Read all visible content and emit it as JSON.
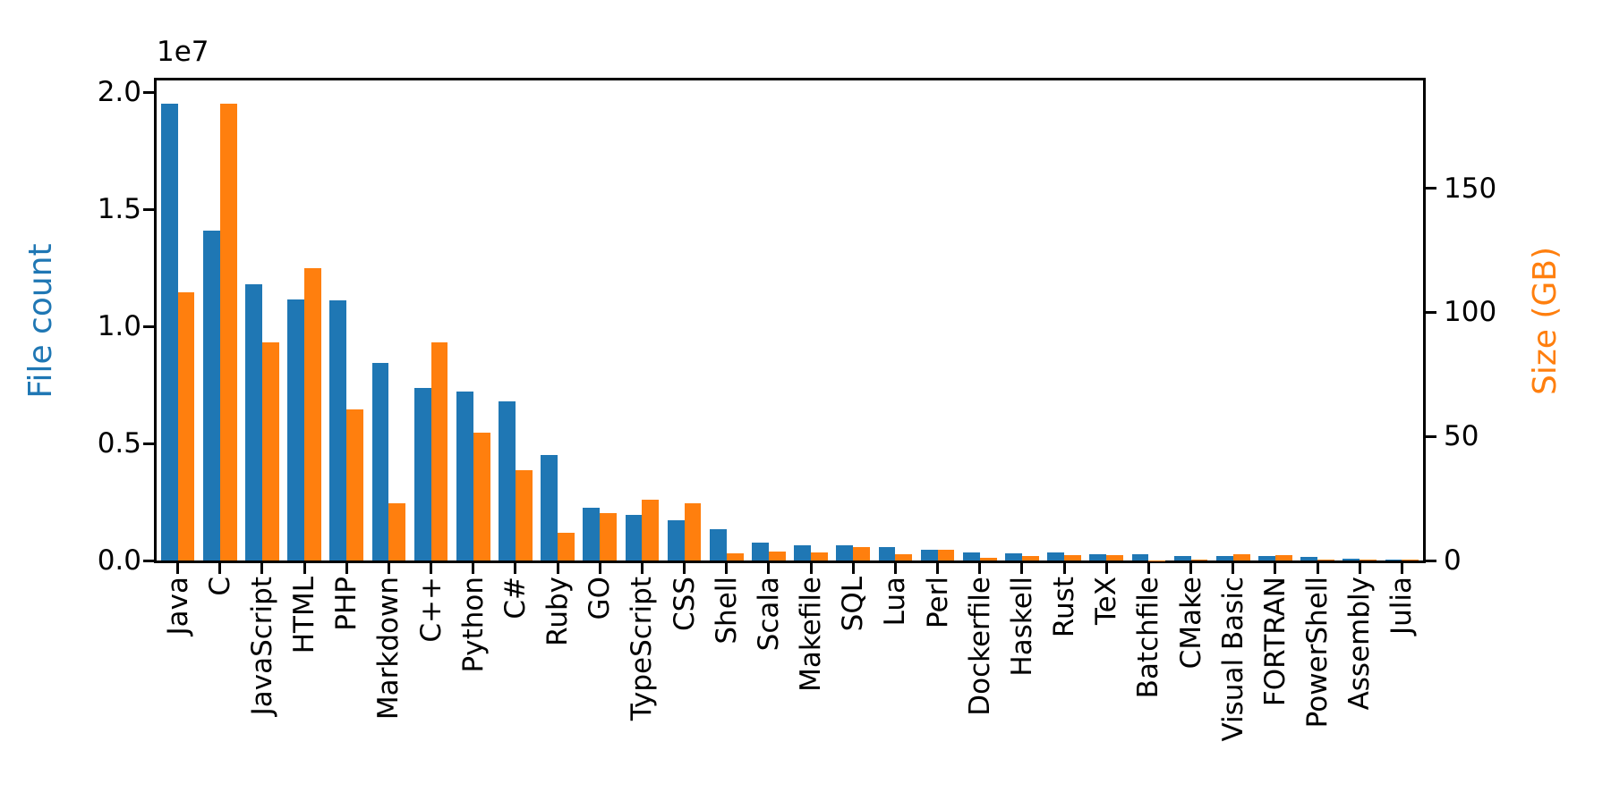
{
  "chart_data": {
    "type": "bar",
    "title": "",
    "categories": [
      "Java",
      "C",
      "JavaScript",
      "HTML",
      "PHP",
      "Markdown",
      "C++",
      "Python",
      "C#",
      "Ruby",
      "GO",
      "TypeScript",
      "CSS",
      "Shell",
      "Scala",
      "Makefile",
      "SQL",
      "Lua",
      "Perl",
      "Dockerfile",
      "Haskell",
      "Rust",
      "TeX",
      "Batchfile",
      "CMake",
      "Visual Basic",
      "FORTRAN",
      "PowerShell",
      "Assembly",
      "Julia"
    ],
    "series": [
      {
        "name": "File count",
        "axis": "left",
        "color": "#1f77b4",
        "values": [
          19500000,
          14100000,
          11800000,
          11150000,
          11100000,
          8450000,
          7350000,
          7200000,
          6800000,
          4500000,
          2250000,
          1950000,
          1720000,
          1350000,
          780000,
          650000,
          630000,
          560000,
          470000,
          360000,
          320000,
          330000,
          270000,
          270000,
          180000,
          200000,
          180000,
          150000,
          80000,
          40000
        ]
      },
      {
        "name": "Size (GB)",
        "axis": "right",
        "color": "#ff7f0e",
        "values": [
          108,
          184,
          88,
          118,
          61,
          23,
          88,
          51.5,
          36.5,
          11,
          19,
          24.5,
          23,
          2.8,
          3.7,
          3.1,
          5.3,
          2.4,
          4.4,
          1.0,
          1.7,
          2.3,
          2.3,
          0.1,
          0.4,
          2.5,
          2.2,
          0.4,
          0.5,
          0.2
        ]
      }
    ],
    "left_axis": {
      "label": "File count",
      "color": "#1f77b4",
      "offset_label": "1e7",
      "tick_labels": [
        "0.0",
        "0.5",
        "1.0",
        "1.5",
        "2.0"
      ],
      "tick_values": [
        0,
        5000000,
        10000000,
        15000000,
        20000000
      ],
      "max": 20500000
    },
    "right_axis": {
      "label": "Size (GB)",
      "color": "#ff7f0e",
      "tick_labels": [
        "0",
        "50",
        "100",
        "150"
      ],
      "tick_values": [
        0,
        50,
        100,
        150
      ],
      "max": 193.5
    },
    "grid": false,
    "legend": "none",
    "x_tick_rotation": 90
  }
}
